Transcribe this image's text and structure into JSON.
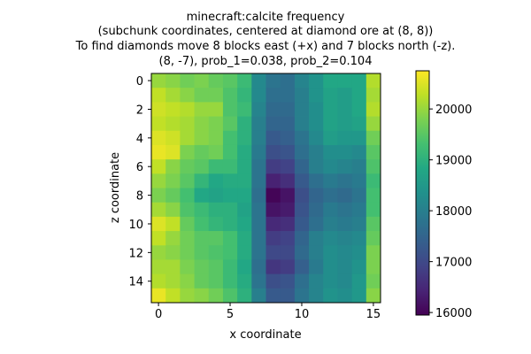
{
  "chart_data": {
    "type": "heatmap",
    "title_lines": [
      "minecraft:calcite frequency",
      "(subchunk coordinates, centered at diamond ore at (8, 8))",
      "To find diamonds move 8 blocks east (+x) and 7 blocks north (-z).",
      "(8, -7), prob_1=0.038, prob_2=0.104"
    ],
    "xlabel": "x coordinate",
    "ylabel": "z coordinate",
    "x_ticks": [
      0,
      5,
      10,
      15
    ],
    "y_ticks": [
      0,
      2,
      4,
      6,
      8,
      10,
      12,
      14
    ],
    "colorbar_ticks": [
      16000,
      17000,
      18000,
      19000,
      20000
    ],
    "colorbar_range": [
      15950,
      20750
    ],
    "colormap": "viridis",
    "values": [
      [
        20000,
        19900,
        19700,
        19800,
        19600,
        19500,
        19200,
        18200,
        17800,
        17700,
        18100,
        18400,
        18800,
        18800,
        18800,
        20200
      ],
      [
        20300,
        20100,
        19900,
        19700,
        19700,
        19400,
        19100,
        18200,
        17700,
        17700,
        18000,
        18400,
        18700,
        18600,
        18800,
        20100
      ],
      [
        20400,
        20300,
        20200,
        20000,
        20000,
        19400,
        19200,
        18100,
        17600,
        17600,
        18000,
        18300,
        18700,
        18600,
        18800,
        20200
      ],
      [
        20300,
        20200,
        20100,
        19900,
        19800,
        19500,
        19000,
        18000,
        17500,
        17500,
        18000,
        18300,
        18700,
        18600,
        18700,
        20000
      ],
      [
        20500,
        20400,
        20100,
        19900,
        19800,
        19300,
        19000,
        18000,
        17300,
        17400,
        17800,
        18200,
        18600,
        18500,
        18500,
        19700
      ],
      [
        20600,
        20500,
        19800,
        19600,
        19700,
        19300,
        18900,
        17900,
        17100,
        17200,
        17700,
        18000,
        18300,
        18300,
        18200,
        19500
      ],
      [
        20300,
        19900,
        19600,
        19500,
        19200,
        19200,
        18900,
        17800,
        16800,
        16900,
        17500,
        18000,
        18200,
        18100,
        18000,
        19400
      ],
      [
        20000,
        19800,
        19500,
        19100,
        18800,
        18900,
        18900,
        17800,
        16400,
        16600,
        17300,
        17700,
        17900,
        17800,
        17900,
        19200
      ],
      [
        19800,
        19600,
        19300,
        18800,
        18700,
        18800,
        18800,
        17700,
        16000,
        16200,
        17100,
        17500,
        17700,
        17600,
        17800,
        19300
      ],
      [
        20100,
        19900,
        19400,
        19200,
        19000,
        19000,
        18700,
        17800,
        16200,
        16300,
        17200,
        17600,
        17900,
        17800,
        17900,
        19300
      ],
      [
        20500,
        20300,
        19600,
        19300,
        19100,
        19000,
        18800,
        17800,
        16500,
        16600,
        17300,
        17700,
        18000,
        17900,
        18000,
        19500
      ],
      [
        20300,
        20000,
        19700,
        19500,
        19500,
        19300,
        18900,
        17800,
        16800,
        16900,
        17500,
        18000,
        18200,
        18100,
        18200,
        19600
      ],
      [
        20000,
        19900,
        19700,
        19500,
        19400,
        19300,
        18900,
        17800,
        17000,
        17000,
        17600,
        18000,
        18300,
        18200,
        18300,
        19800
      ],
      [
        20100,
        20100,
        19800,
        19600,
        19500,
        19200,
        18800,
        17700,
        16700,
        16800,
        17400,
        17900,
        18300,
        18200,
        18400,
        19800
      ],
      [
        20200,
        20100,
        19900,
        19600,
        19500,
        19200,
        18900,
        17800,
        17100,
        17200,
        17700,
        18100,
        18300,
        18200,
        18500,
        19700
      ],
      [
        20600,
        20300,
        20000,
        19900,
        19700,
        19400,
        19000,
        18000,
        17300,
        17300,
        17800,
        18100,
        18400,
        18300,
        18500,
        19900
      ]
    ]
  }
}
